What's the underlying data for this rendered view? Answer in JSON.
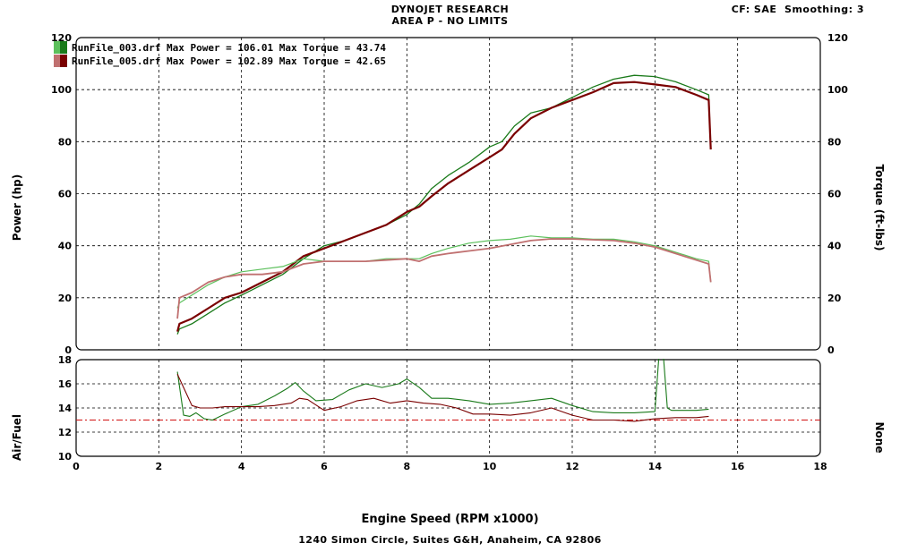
{
  "header": {
    "title": "DYNOJET RESEARCH",
    "subtitle": "AREA P - NO LIMITS",
    "cf": "CF: SAE",
    "smoothing": "Smoothing: 3"
  },
  "footer": "1240 Simon Circle,  Suites G&H,  Anaheim, CA  92806",
  "colors": {
    "run003_power": "#1a7a1a",
    "run003_torque": "#5cc05c",
    "run005_power": "#7a0000",
    "run005_torque": "#c07070",
    "reference": "#d01010"
  },
  "chart_data": [
    {
      "type": "line",
      "name": "power-torque",
      "xlabel": "Engine Speed (RPM x1000)",
      "ylabel": "Power (hp)",
      "y2label": "Torque (ft-lbs)",
      "xlim": [
        0,
        18
      ],
      "ylim": [
        0,
        120
      ],
      "y2lim": [
        0,
        120
      ],
      "xticks": [
        0,
        2,
        4,
        6,
        8,
        10,
        12,
        14,
        16,
        18
      ],
      "yticks": [
        0,
        20,
        40,
        60,
        80,
        100,
        120
      ],
      "grid": true,
      "legend": [
        {
          "file": "RunFile_003.drf",
          "max_power_label": "Max Power =",
          "max_power": "106.01",
          "max_torque_label": "Max Torque =",
          "max_torque": "43.74"
        },
        {
          "file": "RunFile_005.drf",
          "max_power_label": "Max Power =",
          "max_power": "102.89",
          "max_torque_label": "Max Torque =",
          "max_torque": "42.65"
        }
      ],
      "series": [
        {
          "name": "RunFile_003.drf Power",
          "x": [
            2.45,
            2.5,
            2.8,
            3.2,
            3.6,
            4.0,
            4.5,
            5.0,
            5.5,
            6.0,
            6.5,
            7.0,
            7.5,
            8.0,
            8.3,
            8.6,
            9.0,
            9.5,
            10.0,
            10.3,
            10.6,
            11.0,
            11.5,
            12.0,
            12.5,
            13.0,
            13.5,
            14.0,
            14.5,
            15.0,
            15.3,
            15.35
          ],
          "y": [
            6,
            8,
            10,
            14,
            18,
            21,
            25,
            29,
            35,
            40,
            42,
            45,
            48,
            52,
            56,
            62,
            67,
            72,
            78,
            80,
            86,
            91,
            93,
            97,
            101,
            104,
            105.5,
            105,
            103,
            100,
            98,
            78
          ]
        },
        {
          "name": "RunFile_005.drf Power",
          "x": [
            2.45,
            2.5,
            2.8,
            3.2,
            3.6,
            4.0,
            4.5,
            5.0,
            5.5,
            6.0,
            6.5,
            7.0,
            7.5,
            8.0,
            8.3,
            8.6,
            9.0,
            9.5,
            10.0,
            10.3,
            10.6,
            11.0,
            11.5,
            12.0,
            12.5,
            13.0,
            13.5,
            14.0,
            14.5,
            15.0,
            15.3,
            15.35
          ],
          "y": [
            7,
            10,
            12,
            16,
            20,
            22,
            26,
            30,
            36,
            39,
            42,
            45,
            48,
            53,
            55,
            59,
            64,
            69,
            74,
            77,
            83,
            89,
            93,
            96,
            99,
            102.5,
            102.9,
            102,
            101,
            98,
            96,
            77
          ]
        },
        {
          "name": "RunFile_003.drf Torque",
          "x": [
            2.45,
            2.5,
            2.8,
            3.2,
            3.6,
            4.0,
            4.5,
            5.0,
            5.5,
            6.0,
            6.5,
            7.0,
            7.5,
            8.0,
            8.3,
            8.6,
            9.0,
            9.5,
            10.0,
            10.5,
            11.0,
            11.5,
            12.0,
            12.5,
            13.0,
            13.5,
            14.0,
            14.5,
            15.0,
            15.3,
            15.35
          ],
          "y": [
            16,
            18,
            21,
            25,
            28,
            30,
            31,
            32,
            35,
            34,
            34,
            34,
            35,
            35,
            35,
            37,
            39,
            41,
            42,
            42.5,
            43.74,
            43,
            43,
            42.5,
            42.5,
            41.5,
            40,
            37.5,
            35,
            34,
            26
          ]
        },
        {
          "name": "RunFile_005.drf Torque",
          "x": [
            2.45,
            2.5,
            2.8,
            3.2,
            3.6,
            4.0,
            4.5,
            5.0,
            5.5,
            6.0,
            6.5,
            7.0,
            7.5,
            8.0,
            8.3,
            8.6,
            9.0,
            9.5,
            10.0,
            10.5,
            11.0,
            11.5,
            12.0,
            12.5,
            13.0,
            13.5,
            14.0,
            14.5,
            15.0,
            15.3,
            15.35
          ],
          "y": [
            12,
            20,
            22,
            26,
            28,
            29,
            29,
            30,
            33,
            34,
            34,
            34,
            34.5,
            35,
            34,
            36,
            37,
            38,
            39,
            40.5,
            42,
            42.65,
            42.6,
            42.3,
            42,
            41,
            39.5,
            37,
            34.5,
            33,
            26
          ]
        }
      ]
    },
    {
      "type": "line",
      "name": "air-fuel",
      "ylabel": "Air/Fuel",
      "y2label": "None",
      "xlim": [
        0,
        18
      ],
      "ylim": [
        10,
        18
      ],
      "xticks": [
        0,
        2,
        4,
        6,
        8,
        10,
        12,
        14,
        16,
        18
      ],
      "yticks": [
        10,
        12,
        14,
        16,
        18
      ],
      "grid": true,
      "reference_line": 13.0,
      "series": [
        {
          "name": "RunFile_003.drf Air/Fuel",
          "x": [
            2.45,
            2.6,
            2.75,
            2.9,
            3.1,
            3.3,
            3.6,
            4.0,
            4.4,
            4.8,
            5.1,
            5.3,
            5.5,
            5.8,
            6.2,
            6.6,
            7.0,
            7.4,
            7.8,
            8.0,
            8.3,
            8.6,
            9.0,
            9.5,
            10.0,
            10.5,
            11.0,
            11.5,
            12.0,
            12.5,
            13.0,
            13.5,
            14.0,
            14.1,
            14.2,
            14.3,
            14.4,
            14.6,
            15.0,
            15.3
          ],
          "y": [
            17,
            13.4,
            13.3,
            13.6,
            13.1,
            13.0,
            13.5,
            14.1,
            14.3,
            15.0,
            15.6,
            16.1,
            15.4,
            14.6,
            14.7,
            15.5,
            16.0,
            15.7,
            16.0,
            16.4,
            15.7,
            14.8,
            14.8,
            14.6,
            14.3,
            14.4,
            14.6,
            14.8,
            14.2,
            13.7,
            13.6,
            13.6,
            13.7,
            18.5,
            18.5,
            14.0,
            13.8,
            13.8,
            13.8,
            13.9
          ]
        },
        {
          "name": "RunFile_005.drf Air/Fuel",
          "x": [
            2.45,
            2.6,
            2.8,
            3.0,
            3.3,
            3.6,
            4.0,
            4.4,
            4.8,
            5.2,
            5.4,
            5.6,
            6.0,
            6.4,
            6.8,
            7.2,
            7.6,
            8.0,
            8.4,
            8.8,
            9.2,
            9.6,
            10.0,
            10.5,
            11.0,
            11.5,
            12.0,
            12.5,
            13.0,
            13.5,
            14.0,
            14.5,
            15.0,
            15.3
          ],
          "y": [
            16.8,
            15.7,
            14.2,
            14.0,
            14.0,
            14.1,
            14.1,
            14.1,
            14.2,
            14.4,
            14.8,
            14.7,
            13.8,
            14.1,
            14.6,
            14.8,
            14.4,
            14.6,
            14.4,
            14.3,
            14.0,
            13.5,
            13.5,
            13.4,
            13.6,
            14.0,
            13.4,
            13.0,
            13.0,
            12.9,
            13.1,
            13.2,
            13.2,
            13.3
          ]
        }
      ]
    }
  ]
}
